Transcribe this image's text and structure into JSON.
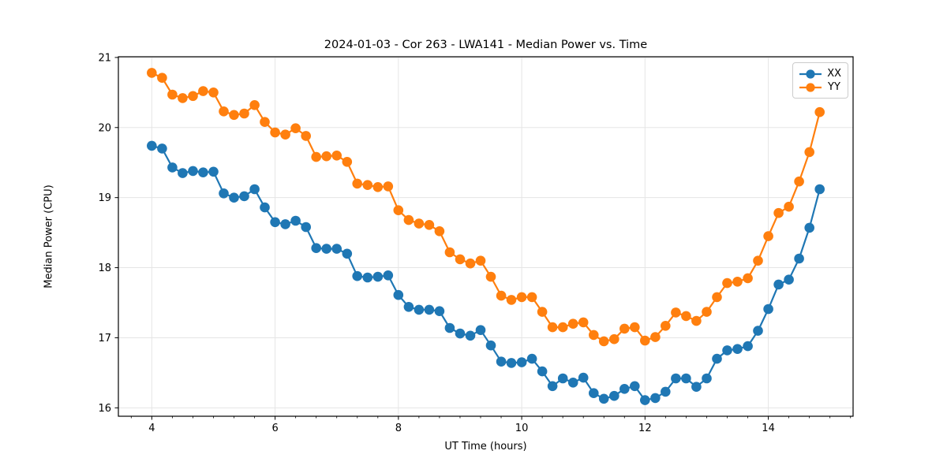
{
  "figure": {
    "background": "#ffffff",
    "spine_color": "#000000",
    "grid_color": "#e5e5e5",
    "tick_color": "#000000"
  },
  "chart_data": {
    "type": "line",
    "title": "2024-01-03 - Cor 263 - LWA141 - Median Power vs. Time",
    "xlabel": "UT Time (hours)",
    "ylabel": "Median Power (CPU)",
    "xlim": [
      3.458,
      15.375
    ],
    "ylim": [
      15.88,
      21.01
    ],
    "xticks": [
      4,
      6,
      8,
      10,
      12,
      14
    ],
    "yticks": [
      16,
      17,
      18,
      19,
      20,
      21
    ],
    "x_minor_step": 0.33333,
    "grid": true,
    "legend_position": "upper right",
    "marker": "circle",
    "marker_size": 6.3,
    "line_width": 2.2,
    "x": [
      4.0,
      4.167,
      4.333,
      4.5,
      4.667,
      4.833,
      5.0,
      5.167,
      5.333,
      5.5,
      5.667,
      5.833,
      6.0,
      6.167,
      6.333,
      6.5,
      6.667,
      6.833,
      7.0,
      7.167,
      7.333,
      7.5,
      7.667,
      7.833,
      8.0,
      8.167,
      8.333,
      8.5,
      8.667,
      8.833,
      9.0,
      9.167,
      9.333,
      9.5,
      9.667,
      9.833,
      10.0,
      10.167,
      10.333,
      10.5,
      10.667,
      10.833,
      11.0,
      11.167,
      11.333,
      11.5,
      11.667,
      11.833,
      12.0,
      12.167,
      12.333,
      12.5,
      12.667,
      12.833,
      13.0,
      13.167,
      13.333,
      13.5,
      13.667,
      13.833,
      14.0,
      14.167,
      14.333,
      14.5,
      14.667,
      14.833
    ],
    "series": [
      {
        "name": "XX",
        "color": "#1f77b4",
        "values": [
          19.74,
          19.7,
          19.43,
          19.35,
          19.38,
          19.36,
          19.37,
          19.06,
          19.0,
          19.02,
          19.12,
          18.86,
          18.65,
          18.62,
          18.67,
          18.58,
          18.28,
          18.27,
          18.27,
          18.2,
          17.88,
          17.86,
          17.87,
          17.89,
          17.61,
          17.44,
          17.4,
          17.4,
          17.38,
          17.14,
          17.06,
          17.03,
          17.11,
          16.89,
          16.66,
          16.64,
          16.65,
          16.7,
          16.52,
          16.31,
          16.42,
          16.36,
          16.43,
          16.21,
          16.13,
          16.17,
          16.27,
          16.31,
          16.11,
          16.14,
          16.23,
          16.42,
          16.42,
          16.3,
          16.42,
          16.7,
          16.82,
          16.84,
          16.88,
          17.1,
          17.41,
          17.76,
          17.83,
          18.13,
          18.57,
          19.12
        ]
      },
      {
        "name": "YY",
        "color": "#ff7f0e",
        "values": [
          20.78,
          20.71,
          20.47,
          20.42,
          20.45,
          20.52,
          20.5,
          20.23,
          20.18,
          20.2,
          20.32,
          20.08,
          19.93,
          19.9,
          19.99,
          19.88,
          19.58,
          19.59,
          19.6,
          19.51,
          19.2,
          19.18,
          19.15,
          19.16,
          18.82,
          18.68,
          18.63,
          18.61,
          18.52,
          18.22,
          18.12,
          18.06,
          18.1,
          17.87,
          17.6,
          17.54,
          17.58,
          17.58,
          17.37,
          17.15,
          17.15,
          17.2,
          17.22,
          17.04,
          16.95,
          16.98,
          17.13,
          17.15,
          16.96,
          17.01,
          17.17,
          17.36,
          17.31,
          17.24,
          17.37,
          17.58,
          17.78,
          17.8,
          17.85,
          18.1,
          18.45,
          18.78,
          18.87,
          19.23,
          19.65,
          20.22
        ]
      }
    ]
  }
}
